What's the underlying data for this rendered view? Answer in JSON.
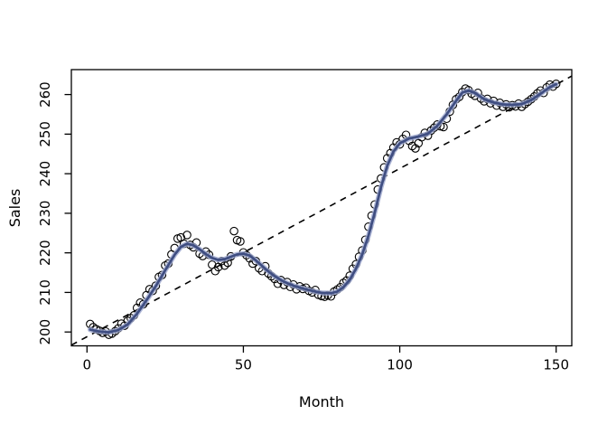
{
  "figure": {
    "background": "#ffffff",
    "description": "R base-graphics scatter plot of monthly sales with loess smooth and dashed linear trend"
  },
  "chart_data": {
    "type": "scatter",
    "title": "",
    "xlabel": "Month",
    "ylabel": "Sales",
    "xlim": [
      -5,
      155
    ],
    "ylim": [
      196.5,
      266.3
    ],
    "xticks": [
      0,
      50,
      100,
      150
    ],
    "yticks": [
      200,
      210,
      220,
      230,
      240,
      250,
      260
    ],
    "grid": false,
    "legend": null,
    "colors": {
      "point_stroke": "#000000",
      "smooth_core": "#3f4e82",
      "smooth_halo": "#9fa9cf",
      "trend": "#000000",
      "axis": "#000000"
    },
    "series": [
      {
        "name": "observed-sales",
        "type": "scatter",
        "marker": "open-circle",
        "x_start": 1,
        "x_step": 1,
        "values": [
          202.0,
          201.2,
          200.7,
          200.3,
          199.8,
          200.1,
          199.3,
          199.6,
          200.2,
          200.9,
          202.1,
          201.6,
          202.8,
          203.5,
          204.2,
          206.1,
          207.4,
          207.0,
          209.3,
          210.8,
          210.4,
          211.7,
          213.9,
          214.4,
          216.8,
          217.3,
          219.6,
          221.2,
          223.6,
          223.9,
          222.3,
          224.5,
          222.0,
          221.4,
          222.6,
          219.8,
          219.2,
          220.3,
          219.5,
          217.0,
          215.4,
          216.4,
          217.9,
          216.8,
          217.5,
          219.1,
          225.5,
          223.2,
          222.9,
          220.1,
          219.4,
          218.6,
          217.3,
          217.9,
          216.1,
          215.4,
          216.6,
          214.8,
          214.1,
          213.4,
          212.2,
          213.1,
          211.9,
          212.6,
          211.4,
          212.0,
          210.8,
          211.5,
          210.9,
          211.2,
          210.4,
          210.0,
          210.6,
          209.4,
          209.1,
          208.9,
          209.3,
          209.0,
          210.2,
          210.7,
          211.3,
          212.4,
          213.0,
          214.2,
          216.0,
          217.1,
          219.0,
          220.6,
          223.3,
          226.6,
          229.4,
          232.2,
          236.0,
          238.8,
          241.6,
          243.9,
          245.2,
          246.6,
          247.9,
          247.4,
          248.8,
          249.8,
          248.3,
          247.0,
          246.4,
          247.7,
          249.2,
          250.3,
          249.6,
          250.9,
          251.6,
          252.4,
          252.0,
          251.8,
          253.9,
          255.7,
          257.4,
          258.8,
          259.4,
          260.6,
          261.5,
          261.1,
          260.2,
          259.7,
          260.4,
          259.0,
          258.3,
          258.9,
          257.8,
          258.4,
          257.2,
          257.9,
          256.9,
          257.5,
          256.8,
          257.3,
          257.0,
          257.7,
          256.9,
          257.6,
          258.2,
          258.8,
          259.5,
          260.3,
          261.0,
          260.4,
          261.8,
          262.5,
          262.0,
          262.7
        ]
      },
      {
        "name": "loess-smooth",
        "type": "line",
        "x": [
          1,
          4,
          7,
          10,
          13,
          16,
          19,
          22,
          25,
          28,
          30,
          32,
          34,
          36,
          38,
          40,
          42,
          44,
          46,
          48,
          50,
          52,
          54,
          56,
          58,
          60,
          63,
          66,
          69,
          72,
          75,
          78,
          80,
          82,
          84,
          86,
          88,
          90,
          92,
          94,
          96,
          98,
          100,
          103,
          106,
          109,
          112,
          115,
          118,
          120,
          122,
          124,
          127,
          130,
          133,
          136,
          139,
          142,
          145,
          148,
          150
        ],
        "y": [
          200.6,
          200.1,
          199.9,
          200.5,
          201.9,
          204.6,
          208.0,
          211.6,
          215.6,
          219.5,
          221.5,
          222.3,
          221.9,
          220.9,
          219.7,
          218.7,
          218.2,
          218.4,
          219.0,
          219.6,
          219.8,
          219.3,
          218.1,
          216.7,
          215.3,
          214.1,
          212.7,
          211.7,
          211.0,
          210.4,
          209.9,
          209.8,
          210.2,
          211.3,
          213.2,
          216.0,
          219.6,
          224.3,
          230.2,
          236.6,
          242.0,
          245.6,
          247.7,
          248.9,
          249.4,
          250.1,
          252.1,
          255.0,
          258.4,
          260.5,
          261.0,
          260.4,
          258.8,
          258.0,
          257.5,
          257.4,
          257.6,
          258.6,
          260.2,
          261.9,
          262.6
        ]
      },
      {
        "name": "linear-trend",
        "type": "line",
        "style": "dashed",
        "intercept": 198.8,
        "slope": 0.425
      }
    ]
  }
}
